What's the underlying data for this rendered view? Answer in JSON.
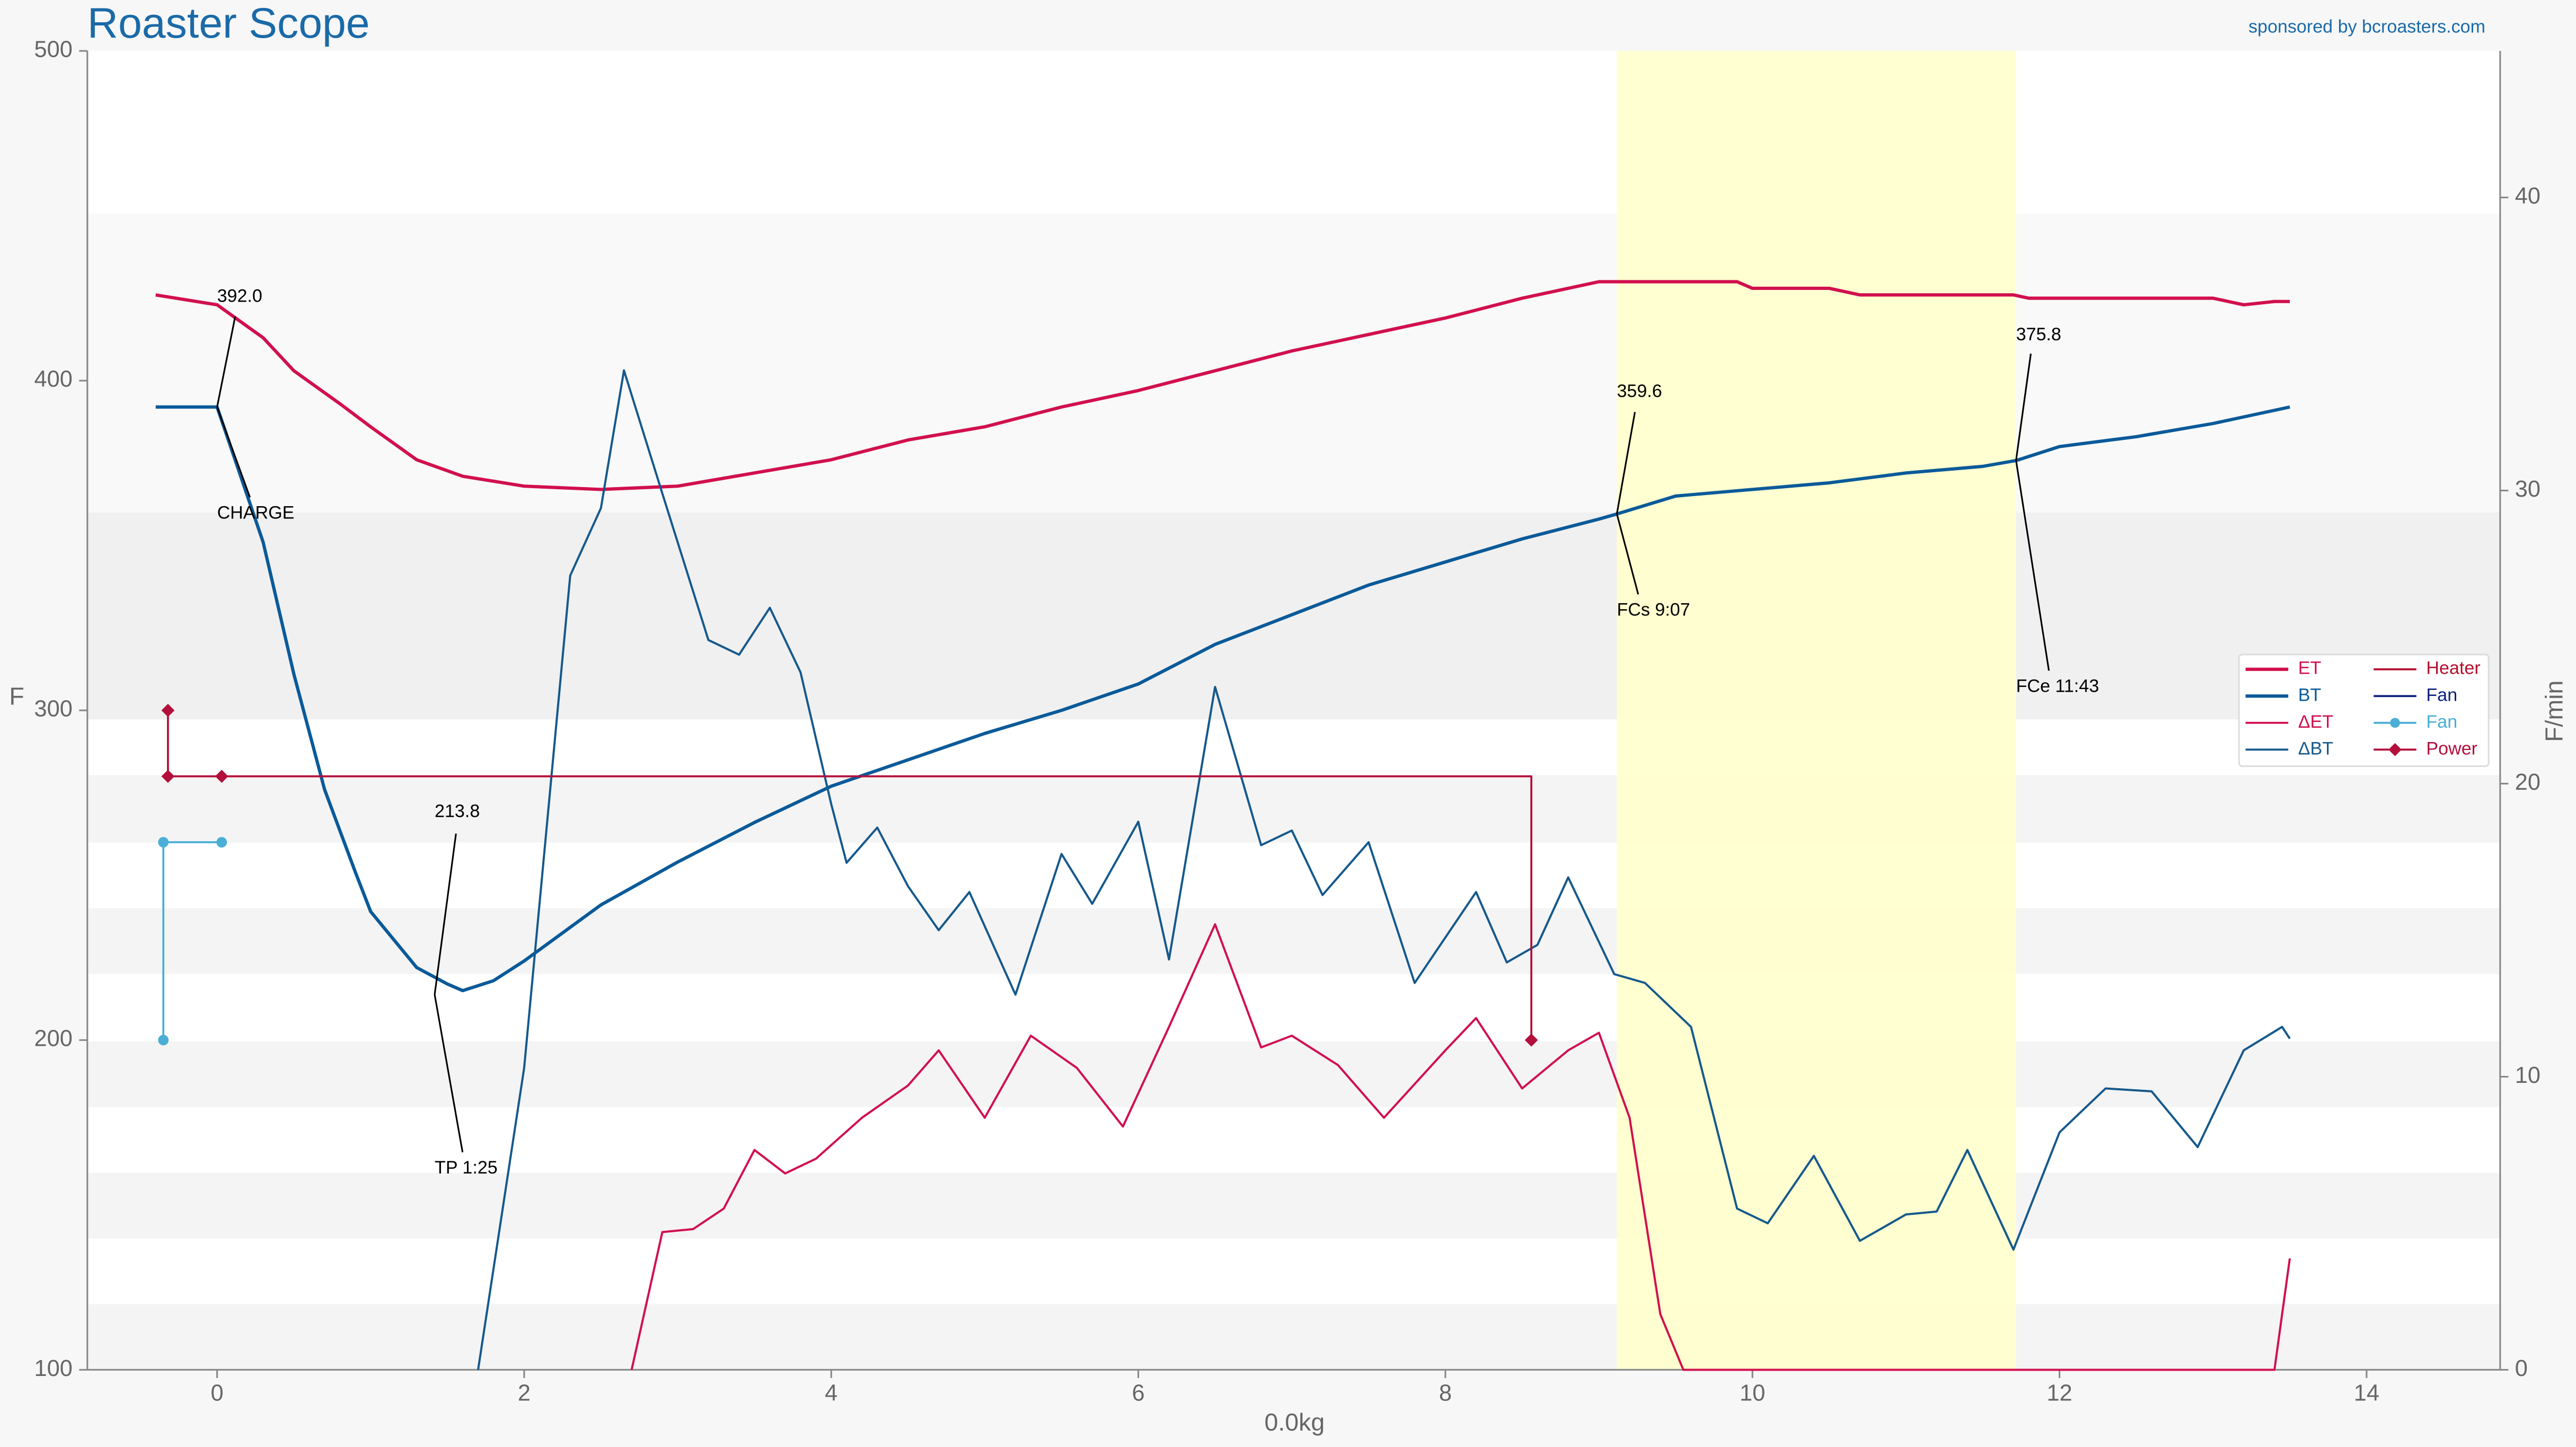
{
  "chart_data": {
    "type": "line",
    "title": "Roaster Scope",
    "subtitle": "sponsored by bcroasters.com",
    "x_label": "0.0kg",
    "y_label": "F",
    "y2_label": "F/min",
    "xlim": [
      -0.845,
      14.87
    ],
    "xticks": [
      0,
      2,
      4,
      6,
      8,
      10,
      12,
      14
    ],
    "ylim": [
      100,
      500
    ],
    "yticks": [
      100,
      200,
      300,
      400,
      500
    ],
    "y2lim": [
      0,
      45
    ],
    "y2ticks": [
      0,
      10,
      20,
      30,
      40
    ],
    "highlight": [
      9.117,
      11.717
    ],
    "highlight_color": "#ffffcc",
    "legend": "center right",
    "series": [
      {
        "name": "ET",
        "color": "#d1104e",
        "x": [
          -0.4,
          0,
          0.3,
          0.5,
          0.8,
          1.0,
          1.3,
          1.6,
          2.0,
          2.5,
          3.0,
          3.5,
          4.0,
          4.5,
          5.0,
          5.5,
          6.0,
          6.5,
          7.0,
          7.5,
          8.0,
          8.5,
          9.0,
          9.5,
          9.9,
          10.0,
          10.5,
          10.7,
          11.0,
          11.7,
          11.8,
          12.5,
          13.0,
          13.2,
          13.4,
          13.5
        ],
        "values": [
          426,
          423,
          413,
          403,
          393,
          386,
          376,
          371,
          368,
          367,
          368,
          372,
          376,
          382,
          386,
          392,
          397,
          403,
          409,
          414,
          419,
          425,
          430,
          430,
          430,
          428,
          428,
          426,
          426,
          426,
          425,
          425,
          425,
          423,
          424,
          424
        ]
      },
      {
        "name": "BT",
        "color": "#0a5a99",
        "x": [
          -0.4,
          0,
          0.3,
          0.5,
          0.7,
          0.9,
          1.0,
          1.3,
          1.5,
          1.6,
          1.8,
          2.0,
          2.5,
          3.0,
          3.5,
          4.0,
          4.5,
          5.0,
          5.5,
          6.0,
          6.5,
          7.0,
          7.5,
          8.0,
          8.5,
          9.0,
          9.12,
          9.5,
          10.0,
          10.5,
          11.0,
          11.5,
          11.72,
          12.0,
          12.5,
          13.0,
          13.5
        ],
        "values": [
          392,
          392,
          351,
          311,
          276,
          251,
          239,
          222,
          217,
          215,
          218,
          224,
          241,
          254,
          266,
          277,
          285,
          293,
          300,
          308,
          320,
          329,
          338,
          345,
          352,
          358,
          359.6,
          365,
          367,
          369,
          372,
          374,
          375.8,
          380,
          383,
          387,
          392
        ]
      },
      {
        "name": "ΔET",
        "color": "#d1104e",
        "axis": "y2",
        "x": [
          2.7,
          2.9,
          3.1,
          3.3,
          3.5,
          3.7,
          3.9,
          4.2,
          4.5,
          4.7,
          5.0,
          5.3,
          5.6,
          5.9,
          6.2,
          6.5,
          6.8,
          7.0,
          7.3,
          7.6,
          8.0,
          8.2,
          8.5,
          8.8,
          9.0,
          9.2,
          9.4,
          9.55,
          13.4,
          13.5
        ],
        "values": [
          0,
          4.7,
          4.8,
          5.5,
          7.5,
          6.7,
          7.2,
          8.6,
          9.7,
          10.9,
          8.6,
          11.4,
          10.3,
          8.3,
          11.7,
          15.2,
          11.0,
          11.4,
          10.4,
          8.6,
          10.9,
          12.0,
          9.6,
          10.9,
          11.5,
          8.6,
          1.9,
          0,
          0,
          3.8
        ]
      },
      {
        "name": "ΔBT",
        "color": "#15598c",
        "axis": "y2",
        "x": [
          1.7,
          2.0,
          2.3,
          2.5,
          2.65,
          2.9,
          3.2,
          3.4,
          3.6,
          3.8,
          4.0,
          4.1,
          4.3,
          4.5,
          4.7,
          4.9,
          5.2,
          5.5,
          5.7,
          6.0,
          6.2,
          6.5,
          6.8,
          7.0,
          7.2,
          7.5,
          7.8,
          8.2,
          8.4,
          8.6,
          8.8,
          9.1,
          9.3,
          9.6,
          9.9,
          10.1,
          10.4,
          10.7,
          11.0,
          11.2,
          11.4,
          11.7,
          12.0,
          12.3,
          12.6,
          12.9,
          13.2,
          13.45,
          13.5
        ],
        "values": [
          0,
          10.3,
          27.1,
          29.4,
          34.1,
          29.9,
          24.9,
          24.4,
          26.0,
          23.8,
          19.3,
          17.3,
          18.5,
          16.5,
          15.0,
          16.3,
          12.8,
          17.6,
          15.9,
          18.7,
          14.0,
          23.3,
          17.9,
          18.4,
          16.2,
          18.0,
          13.2,
          16.3,
          13.9,
          14.5,
          16.8,
          13.5,
          13.2,
          11.7,
          5.5,
          5.0,
          7.3,
          4.4,
          5.3,
          5.4,
          7.5,
          4.1,
          8.1,
          9.6,
          9.5,
          7.6,
          10.9,
          11.7,
          11.3
        ]
      },
      {
        "name": "Heater",
        "color": "#b30f2e",
        "x": [],
        "values": []
      },
      {
        "name": "Fan",
        "color": "#0c1f7a",
        "x": [],
        "values": []
      },
      {
        "name": "Fan",
        "color": "#4aaed6",
        "style": "step",
        "marker": "circle",
        "x": [
          -0.35,
          -0.35,
          0.03
        ],
        "values": [
          200,
          260,
          260
        ]
      },
      {
        "name": "Power",
        "color": "#b30f3a",
        "style": "step",
        "marker": "diamond",
        "x": [
          -0.32,
          -0.32,
          0.03,
          8.56
        ],
        "values": [
          300,
          280,
          280,
          200
        ]
      }
    ],
    "events": [
      {
        "x": 0,
        "y": 392,
        "value_label": "392.0",
        "label": "CHARGE"
      },
      {
        "x": 1.417,
        "y": 213.8,
        "value_label": "213.8",
        "label": "TP 1:25"
      },
      {
        "x": 9.117,
        "y": 359.6,
        "value_label": "359.6",
        "label": "FCs 9:07"
      },
      {
        "x": 11.717,
        "y": 375.8,
        "value_label": "375.8",
        "label": "FCe 11:43"
      }
    ]
  }
}
